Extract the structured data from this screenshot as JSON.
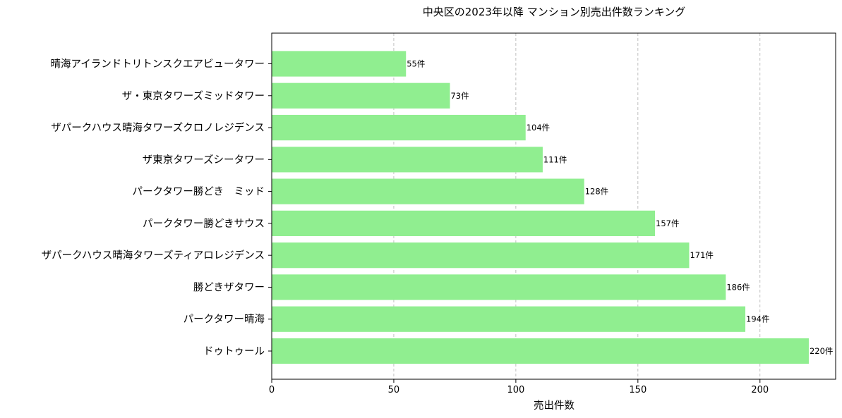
{
  "chart_data": {
    "type": "bar",
    "orientation": "horizontal",
    "title": "中央区の2023年以降 マンション別売出件数ランキング",
    "xlabel": "売出件数",
    "ylabel": "",
    "xlim": [
      0,
      231
    ],
    "xticks": [
      0,
      50,
      100,
      150,
      200
    ],
    "grid": "x-dashed",
    "bar_color": "#90ee90",
    "value_suffix": "件",
    "categories": [
      "晴海アイランドトリトンスクエアビュータワー",
      "ザ・東京タワーズミッドタワー",
      "ザパークハウス晴海タワーズクロノレジデンス",
      "ザ東京タワーズシータワー",
      "パークタワー勝どき　ミッド",
      "パークタワー勝どきサウス",
      "ザパークハウス晴海タワーズティアロレジデンス",
      "勝どきザタワー",
      "パークタワー晴海",
      "ドゥトゥール"
    ],
    "values": [
      55,
      73,
      104,
      111,
      128,
      157,
      171,
      186,
      194,
      220
    ]
  }
}
